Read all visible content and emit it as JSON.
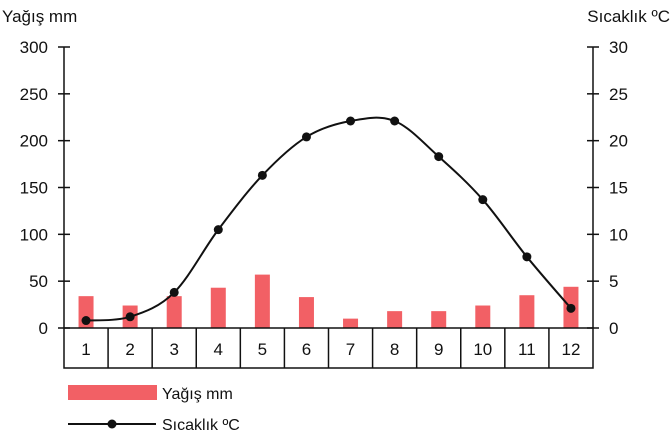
{
  "chart_data": {
    "type": "bar+line",
    "categories": [
      "1",
      "2",
      "3",
      "4",
      "5",
      "6",
      "7",
      "8",
      "9",
      "10",
      "11",
      "12"
    ],
    "series": [
      {
        "name": "Yağış mm",
        "type": "bar",
        "axis": "left",
        "color": "#f26065",
        "values": [
          34,
          24,
          34,
          43,
          57,
          33,
          10,
          18,
          18,
          24,
          35,
          44
        ]
      },
      {
        "name": "Sıcaklık ºC",
        "type": "line",
        "axis": "right",
        "color": "#111111",
        "values": [
          0.8,
          1.2,
          3.8,
          10.5,
          16.3,
          20.4,
          22.1,
          22.1,
          18.3,
          13.7,
          7.6,
          2.1
        ]
      }
    ],
    "ylabel_left": "Yağış mm",
    "ylabel_right": "Sıcaklık ºC",
    "ylim_left": [
      0,
      300
    ],
    "ylim_right": [
      0,
      30
    ],
    "yticks_left": [
      "0",
      "50",
      "100",
      "150",
      "200",
      "250",
      "300"
    ],
    "yticks_right": [
      "0",
      "5",
      "10",
      "15",
      "20",
      "25",
      "30"
    ],
    "grid": false,
    "legend": {
      "placement": "bottom-left",
      "entries": [
        "Yağış mm",
        "Sıcaklık ºC"
      ]
    }
  }
}
